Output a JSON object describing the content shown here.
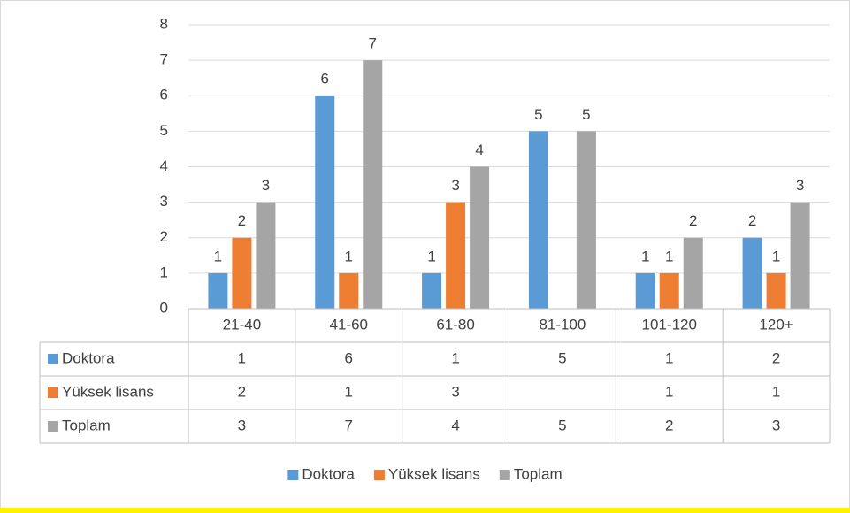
{
  "chart_data": {
    "type": "bar",
    "categories": [
      "21-40",
      "41-60",
      "61-80",
      "81-100",
      "101-120",
      "120+"
    ],
    "series": [
      {
        "name": "Doktora",
        "color": "#5b9bd5",
        "values": [
          1,
          6,
          1,
          5,
          1,
          2
        ]
      },
      {
        "name": "Yüksek lisans",
        "color": "#ed7d31",
        "values": [
          2,
          1,
          3,
          null,
          1,
          1
        ]
      },
      {
        "name": "Toplam",
        "color": "#a5a5a5",
        "values": [
          3,
          7,
          4,
          5,
          2,
          3
        ]
      }
    ],
    "ylim": [
      0,
      8
    ],
    "yticks": [
      0,
      1,
      2,
      3,
      4,
      5,
      6,
      7,
      8
    ],
    "grid": true,
    "data_table": true,
    "legend": "bottom"
  }
}
